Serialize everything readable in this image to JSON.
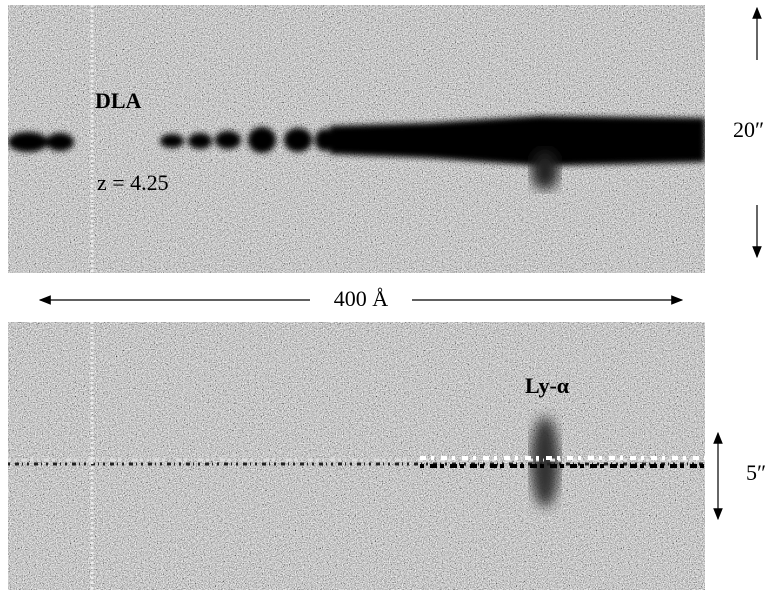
{
  "top_panel": {
    "label": "DLA",
    "redshift": "z = 4.25",
    "scale": "20″"
  },
  "wavelength_span": "400 Å",
  "bottom_panel": {
    "label": "Ly-α",
    "scale": "5″"
  }
}
